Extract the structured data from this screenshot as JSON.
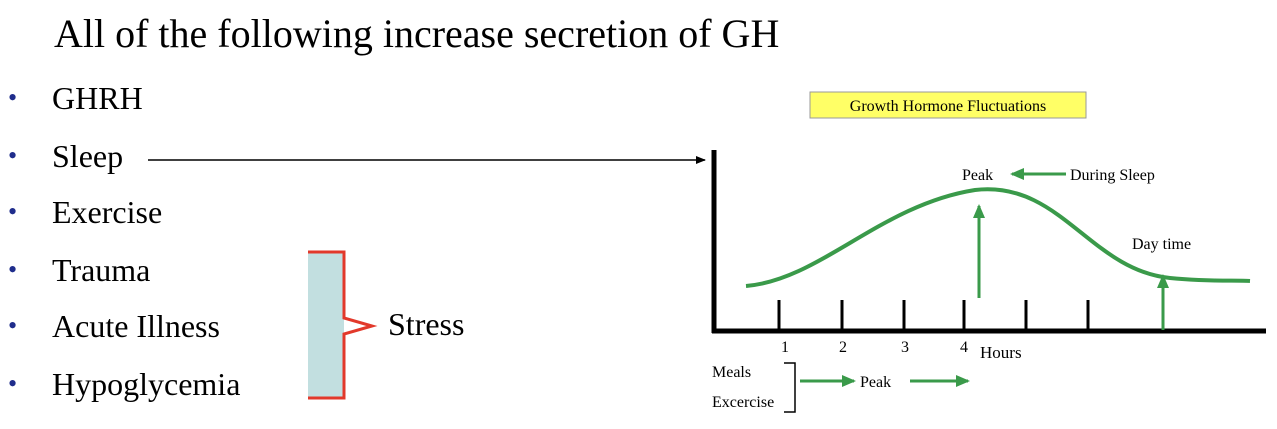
{
  "title": "All of the following increase secretion of GH",
  "bullets": [
    "GHRH",
    "Sleep",
    "Exercise",
    "Trauma",
    "Acute Illness",
    "Hypoglycemia"
  ],
  "bullet_symbol": "•",
  "bullet_color": "#1f2d8c",
  "stress_label": "Stress",
  "brace_color": "#e2392b",
  "brace_fill": "#c2dfe0",
  "diagram": {
    "title": "Growth Hormone Fluctuations",
    "title_bg": "#ffff66",
    "curve_color": "#3a9a4a",
    "peak_label": "Peak",
    "during_sleep_label": "During Sleep",
    "day_time_label": "Day time",
    "hours_label": "Hours",
    "ticks": [
      "1",
      "2",
      "3",
      "4"
    ],
    "meals_label": "Meals",
    "exercise_label": "Excercise",
    "bottom_peak_label": "Peak"
  }
}
